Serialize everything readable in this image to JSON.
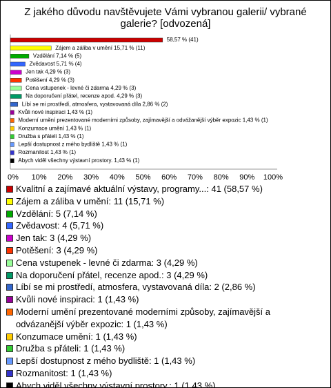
{
  "chart_data": {
    "type": "bar",
    "orientation": "horizontal",
    "title": "Z jakého důvodu navštěvujete Vámi vybranou galerii/ vybrané galerie? [odvozená]",
    "values": [
      58.57,
      15.71,
      7.14,
      5.71,
      4.29,
      4.29,
      4.29,
      4.29,
      2.86,
      1.43,
      1.43,
      1.43,
      1.43,
      1.43,
      1.43,
      1.43
    ],
    "value_labels": [
      "58,57 % (41)",
      "Zájem a záliba v umění 15,71 % (11)",
      "Vzdělání 7,14 % (5)",
      "Zvědavost 5,71 % (4)",
      "Jen tak 4,29 % (3)",
      "Potěšení 4,29 % (3)",
      "Cena vstupenek - levné či zdarma 4,29 % (3)",
      "Na doporučení přátel, recenze apod. 4,29 % (3)",
      "Líbí se mi prostředí, atmosfera, vystavovaná díla 2,86 % (2)",
      "Kvůli nové inspiraci 1,43 % (1)",
      "Moderní umění prezentované moderními způsoby, zajímavější a odvážanější výběr expozic 1,43 % (1)",
      "Konzumace umění 1,43 % (1)",
      "Družba s přáteli 1,43 % (1)",
      "Lepší dostupnost z mého bydliště 1,43 % (1)",
      "Rozmanitost 1,43 % (1)",
      "Abych viděl všechny výstavní prostory. 1,43 % (1)"
    ],
    "legend_labels": [
      "Kvalitní a zajímavé aktuální výstavy, programy...: 41 (58,57 %)",
      "Zájem a záliba v umění: 11 (15,71 %)",
      "Vzdělání: 5 (7,14 %)",
      "Zvědavost: 4 (5,71 %)",
      "Jen tak: 3 (4,29 %)",
      "Potěšení: 3 (4,29 %)",
      "Cena vstupenek - levné či zdarma: 3 (4,29 %)",
      "Na doporučení přátel, recenze apod.: 3 (4,29 %)",
      "Líbí se mi prostředí, atmosfera, vystavovaná díla: 2 (2,86 %)",
      "Kvůli nové inspiraci: 1 (1,43 %)",
      "Moderní umění prezentované moderními způsoby, zajímavější a odvázanější výběr expozic: 1 (1,43 %)",
      "Konzumace umění: 1 (1,43 %)",
      "Družba s přáteli: 1 (1,43 %)",
      "Lepší dostupnost z mého bydliště: 1 (1,43 %)",
      "Rozmanitost: 1 (1,43 %)",
      "Abych viděl všechny výstavní prostory.: 1 (1,43 %)"
    ],
    "colors": [
      "#cc0000",
      "#ffff00",
      "#00aa00",
      "#3366ff",
      "#cc00cc",
      "#ff3300",
      "#99ff99",
      "#009966",
      "#3366cc",
      "#990099",
      "#ff6600",
      "#ffcc00",
      "#33cc33",
      "#6699ff",
      "#3333cc",
      "#000000"
    ],
    "xlim": [
      0,
      100
    ],
    "xticks": [
      {
        "value": 0,
        "label": "0%"
      },
      {
        "value": 10,
        "label": "10%"
      },
      {
        "value": 20,
        "label": "20%"
      },
      {
        "value": 30,
        "label": "30%"
      },
      {
        "value": 40,
        "label": "40%"
      },
      {
        "value": 50,
        "label": "50%"
      },
      {
        "value": 60,
        "label": "60%"
      },
      {
        "value": 70,
        "label": "70%"
      },
      {
        "value": 80,
        "label": "80%"
      },
      {
        "value": 90,
        "label": "90%"
      },
      {
        "value": 100,
        "label": "100%"
      }
    ],
    "grid": false
  }
}
